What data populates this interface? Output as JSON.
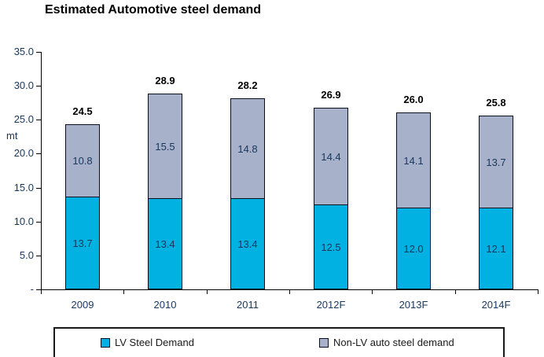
{
  "chart_data": {
    "type": "bar",
    "stacked": true,
    "title": "Estimated Automotive steel demand",
    "ylabel": "mt",
    "ylim": [
      0,
      35
    ],
    "grid": false,
    "legend_position": "bottom",
    "categories": [
      "2009",
      "2010",
      "2011",
      "2012F",
      "2013F",
      "2014F"
    ],
    "series": [
      {
        "name": "LV Steel Demand",
        "color": "#00B1E1",
        "values": [
          13.7,
          13.4,
          13.4,
          12.5,
          12.0,
          12.1
        ]
      },
      {
        "name": "Non-LV auto steel demand",
        "color": "#A8B1CA",
        "values": [
          10.8,
          15.5,
          14.8,
          14.4,
          14.1,
          13.7
        ]
      }
    ],
    "totals": [
      "24.5",
      "28.9",
      "28.2",
      "26.9",
      "26.0",
      "25.8"
    ]
  },
  "y_axis": {
    "unit_label": "mt",
    "ticks": [
      {
        "label": "35.0",
        "value": 35
      },
      {
        "label": "30.0",
        "value": 30
      },
      {
        "label": "25.0",
        "value": 25
      },
      {
        "label": "20.0",
        "value": 20
      },
      {
        "label": "15.0",
        "value": 15
      },
      {
        "label": "10.0",
        "value": 10
      },
      {
        "label": "5.0",
        "value": 5
      },
      {
        "label": "-",
        "value": 0
      }
    ]
  },
  "colors": {
    "axis": "#000000",
    "tick_label": "#17375E",
    "value_label": "#17375E",
    "total_label": "#000000",
    "bar_border": "#0A0F1E",
    "legend_text": "#1a1a1a"
  }
}
